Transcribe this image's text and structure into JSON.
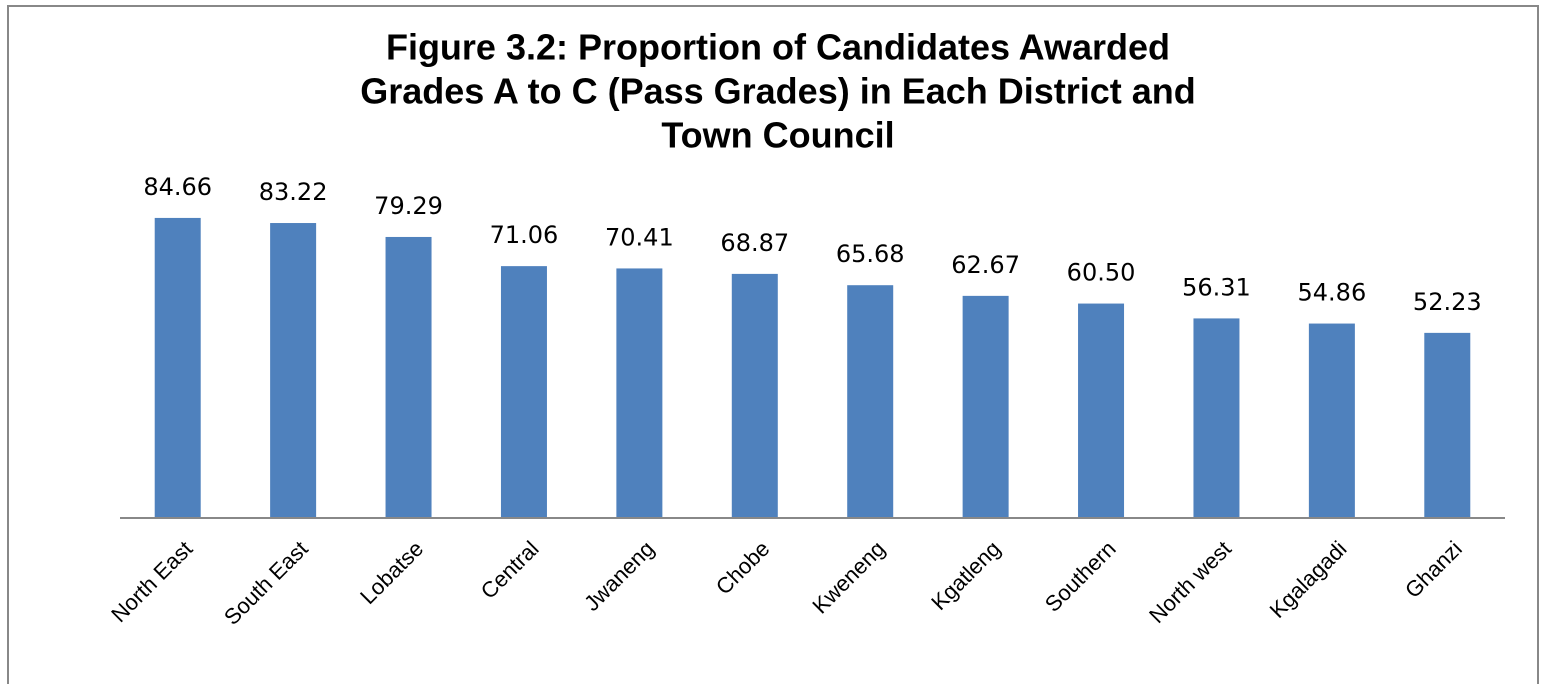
{
  "chart_data": {
    "type": "bar",
    "title": [
      "Figure 3.2: Proportion of Candidates Awarded",
      "Grades A to C (Pass Grades) in Each District and",
      "Town Council"
    ],
    "categories": [
      "North East",
      "South East",
      "Lobatse",
      "Central",
      "Jwaneng",
      "Chobe",
      "Kweneng",
      "Kgatleng",
      "Southern",
      "North west",
      "Kgalagadi",
      "Ghanzi"
    ],
    "values": [
      84.66,
      83.22,
      79.29,
      71.06,
      70.41,
      68.87,
      65.68,
      62.67,
      60.5,
      56.31,
      54.86,
      52.23
    ],
    "value_labels": [
      "84.66",
      "83.22",
      "79.29",
      "71.06",
      "70.41",
      "68.87",
      "65.68",
      "62.67",
      "60.50",
      "56.31",
      "54.86",
      "52.23"
    ],
    "color": "#4f81bd",
    "ylim": [
      0,
      90
    ]
  }
}
